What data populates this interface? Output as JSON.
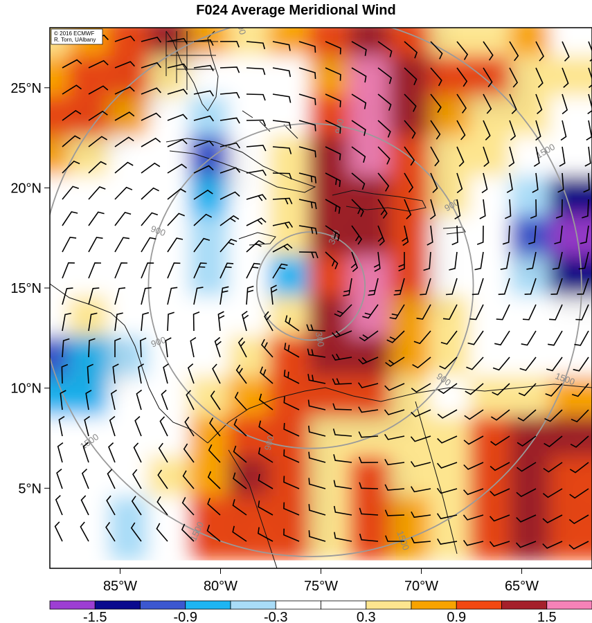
{
  "title": "F024 Average Meridional Wind",
  "credit": {
    "line1": "© 2016 ECMWF",
    "line2": "R. Torn, UAlbany"
  },
  "map": {
    "lat_range": [
      1,
      28
    ],
    "lon_range": [
      -88.5,
      -61.5
    ],
    "lat_ticks": [
      {
        "value": 25,
        "label": "25°N"
      },
      {
        "value": 20,
        "label": "20°N"
      },
      {
        "value": 15,
        "label": "15°N"
      },
      {
        "value": 10,
        "label": "10°N"
      },
      {
        "value": 5,
        "label": "5°N"
      }
    ],
    "lon_ticks": [
      {
        "value": -85,
        "label": "85°W"
      },
      {
        "value": -80,
        "label": "80°W"
      },
      {
        "value": -75,
        "label": "75°W"
      },
      {
        "value": -70,
        "label": "70°W"
      },
      {
        "value": -65,
        "label": "65°W"
      }
    ],
    "storm_center": {
      "lon": -75.5,
      "lat": 15.1
    },
    "range_rings": [
      {
        "radius_km": 300,
        "label": "300"
      },
      {
        "radius_km": 900,
        "label": "900"
      },
      {
        "radius_km": 1500,
        "label": "1500"
      }
    ],
    "ring_labels_shown": [
      {
        "ring": "300",
        "bearing_deg": 25
      },
      {
        "ring": "300",
        "bearing_deg": 170
      },
      {
        "ring": "900",
        "bearing_deg": 10
      },
      {
        "ring": "900",
        "bearing_deg": 60
      },
      {
        "ring": "900",
        "bearing_deg": 125
      },
      {
        "ring": "900",
        "bearing_deg": 195
      },
      {
        "ring": "900",
        "bearing_deg": 250
      },
      {
        "ring": "900",
        "bearing_deg": 290
      },
      {
        "ring": "1500",
        "bearing_deg": 345
      },
      {
        "ring": "1500",
        "bearing_deg": 60
      },
      {
        "ring": "1500",
        "bearing_deg": 110
      },
      {
        "ring": "1500",
        "bearing_deg": 160
      },
      {
        "ring": "1500",
        "bearing_deg": 205
      },
      {
        "ring": "1500",
        "bearing_deg": 235
      },
      {
        "ring": "1500",
        "bearing_deg": 268
      }
    ],
    "field_variable": "meridional wind",
    "stipple_threshold_abs": 0.9
  },
  "colorbar": {
    "labels": [
      "-1.5",
      "-0.9",
      "-0.3",
      "0.3",
      "0.9",
      "1.5"
    ],
    "bins": [
      {
        "min": -1.8,
        "max": -1.5,
        "color": "#9d3ed3"
      },
      {
        "min": -1.5,
        "max": -1.2,
        "color": "#0a0a8e"
      },
      {
        "min": -1.2,
        "max": -0.9,
        "color": "#3b57d0"
      },
      {
        "min": -0.9,
        "max": -0.6,
        "color": "#1db5f2"
      },
      {
        "min": -0.6,
        "max": -0.3,
        "color": "#a9dcf7"
      },
      {
        "min": -0.3,
        "max": 0.0,
        "color": "#ffffff"
      },
      {
        "min": 0.0,
        "max": 0.3,
        "color": "#ffffff"
      },
      {
        "min": 0.3,
        "max": 0.6,
        "color": "#fde58f"
      },
      {
        "min": 0.6,
        "max": 0.9,
        "color": "#f8a300"
      },
      {
        "min": 0.9,
        "max": 1.2,
        "color": "#f24812"
      },
      {
        "min": 1.2,
        "max": 1.5,
        "color": "#a5202b"
      },
      {
        "min": 1.5,
        "max": 1.8,
        "color": "#f582b8"
      }
    ]
  },
  "chart_data": {
    "type": "heatmap",
    "title": "F024 Average Meridional Wind",
    "xlabel": "",
    "ylabel": "",
    "lon_range": [
      -88.5,
      -61.5
    ],
    "lat_range": [
      1,
      28
    ],
    "grid_lon": [
      -88,
      -86,
      -84,
      -82,
      -80,
      -78,
      -76,
      -74,
      -72,
      -70,
      -68,
      -66,
      -64,
      -62
    ],
    "grid_lat": [
      27,
      25,
      23,
      21,
      19,
      17,
      15,
      13,
      11,
      9,
      7,
      5,
      3
    ],
    "values": [
      [
        0.3,
        0.6,
        0.9,
        1.2,
        0.6,
        0.3,
        0.6,
        0.9,
        1.3,
        1.0,
        0.5,
        0.3,
        0.6,
        0.2
      ],
      [
        0.7,
        1.0,
        1.0,
        0.5,
        0.0,
        0.2,
        0.2,
        0.6,
        1.5,
        1.3,
        1.0,
        0.9,
        0.4,
        0.3
      ],
      [
        1.0,
        1.1,
        0.7,
        0.1,
        -0.5,
        -0.1,
        0.2,
        1.1,
        1.6,
        1.2,
        0.8,
        0.4,
        0.3,
        0.1
      ],
      [
        0.6,
        0.4,
        0.1,
        -0.3,
        -1.2,
        -0.3,
        0.3,
        1.2,
        1.6,
        1.1,
        0.5,
        0.3,
        0.2,
        -0.3
      ],
      [
        -0.3,
        0.0,
        0.0,
        -0.2,
        -0.8,
        -0.2,
        0.5,
        1.2,
        1.3,
        0.9,
        0.3,
        0.0,
        -0.6,
        -1.5
      ],
      [
        0.0,
        0.0,
        0.2,
        -0.1,
        -0.6,
        -0.2,
        0.4,
        1.2,
        1.4,
        0.9,
        0.2,
        0.0,
        -1.1,
        -1.7
      ],
      [
        0.1,
        0.2,
        0.1,
        0.0,
        -0.5,
        -0.3,
        -0.8,
        1.0,
        1.6,
        0.9,
        0.2,
        0.0,
        -0.6,
        -1.3
      ],
      [
        0.1,
        0.5,
        0.1,
        0.0,
        -0.3,
        0.2,
        0.3,
        1.3,
        1.6,
        0.8,
        0.3,
        0.0,
        -0.2,
        -0.3
      ],
      [
        -1.0,
        -0.9,
        -0.5,
        0.0,
        0.1,
        0.4,
        0.9,
        1.3,
        1.3,
        0.7,
        0.3,
        0.0,
        0.0,
        0.0
      ],
      [
        -0.7,
        -0.7,
        -0.3,
        0.0,
        0.4,
        0.7,
        1.1,
        1.0,
        0.9,
        0.5,
        0.2,
        0.4,
        0.5,
        0.7
      ],
      [
        -0.3,
        -0.2,
        0.0,
        0.2,
        0.7,
        1.1,
        1.0,
        0.5,
        0.4,
        0.3,
        0.4,
        1.1,
        1.3,
        1.2
      ],
      [
        0.0,
        -0.1,
        -0.2,
        0.3,
        0.8,
        1.3,
        0.9,
        0.4,
        1.0,
        0.3,
        0.5,
        1.0,
        1.4,
        1.0
      ],
      [
        0.0,
        -0.3,
        -0.4,
        0.1,
        0.9,
        1.0,
        0.9,
        0.5,
        1.0,
        0.8,
        0.5,
        1.1,
        1.3,
        0.9
      ]
    ],
    "colorbar_ticks": [
      -1.5,
      -0.9,
      -0.3,
      0.3,
      0.9,
      1.5
    ],
    "grid": false
  }
}
